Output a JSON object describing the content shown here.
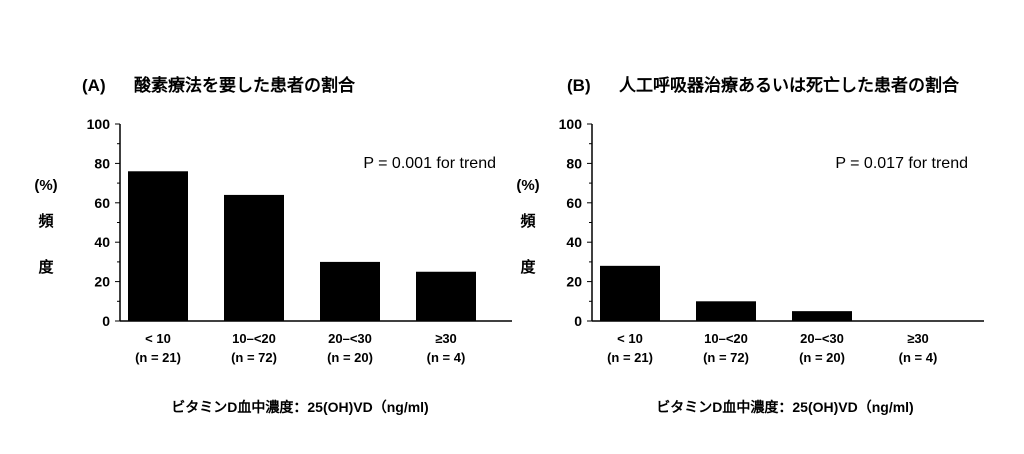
{
  "chart_data": [
    {
      "type": "bar",
      "panel": "(A)",
      "title": "酸素療法を要した患者の割合",
      "categories": [
        "< 10",
        "10–<20",
        "20–<30",
        "≥30"
      ],
      "category_n": [
        "(n = 21)",
        "(n = 72)",
        "(n = 20)",
        "(n = 4)"
      ],
      "values": [
        76,
        64,
        30,
        25
      ],
      "ylim": [
        0,
        100
      ],
      "yticks": [
        0,
        20,
        40,
        60,
        80,
        100
      ],
      "ylabel": [
        "(%)",
        "頻",
        "度"
      ],
      "xlabel": "ビタミンD血中濃度：25(OH)VD（ng/ml)",
      "annotation": "P = 0.001 for trend",
      "bar_color": "#000000"
    },
    {
      "type": "bar",
      "panel": "(B)",
      "title": "人工呼吸器治療あるいは死亡した患者の割合",
      "categories": [
        "< 10",
        "10–<20",
        "20–<30",
        "≥30"
      ],
      "category_n": [
        "(n = 21)",
        "(n = 72)",
        "(n = 20)",
        "(n = 4)"
      ],
      "values": [
        28,
        10,
        5,
        0
      ],
      "ylim": [
        0,
        100
      ],
      "yticks": [
        0,
        20,
        40,
        60,
        80,
        100
      ],
      "ylabel": [
        "(%)",
        "頻",
        "度"
      ],
      "xlabel": "ビタミンD血中濃度：25(OH)VD（ng/ml)",
      "annotation": "P = 0.017 for trend",
      "bar_color": "#000000"
    }
  ]
}
